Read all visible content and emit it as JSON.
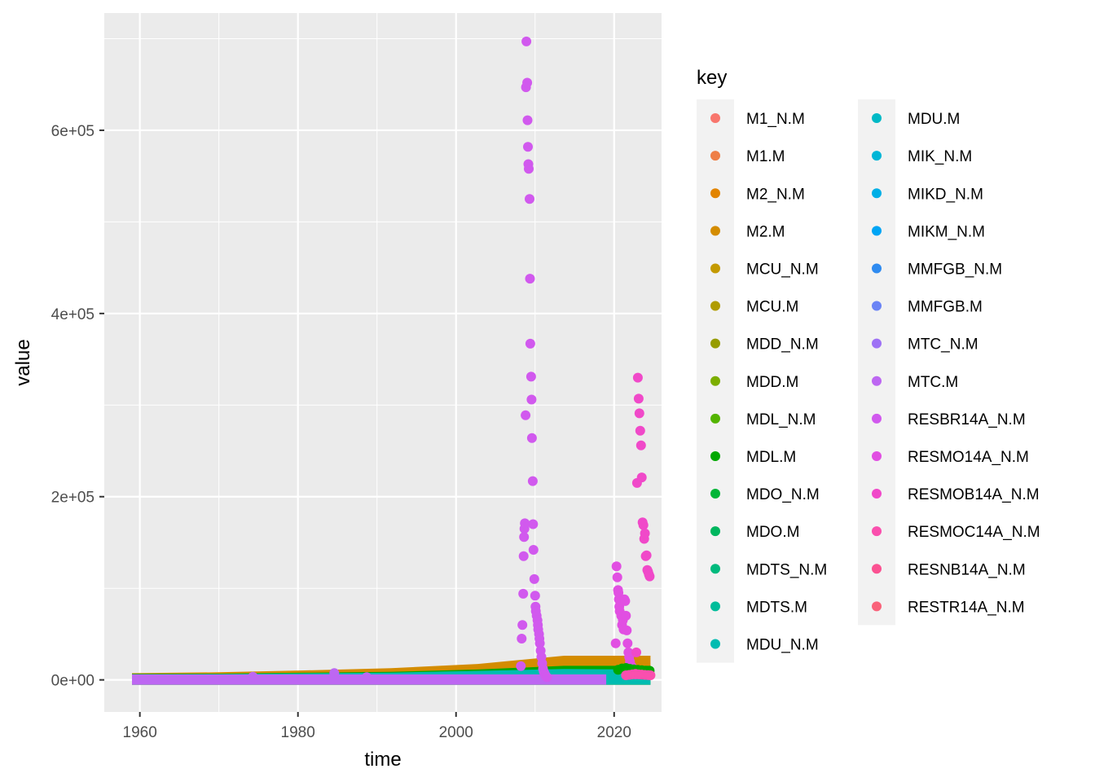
{
  "chart_data": {
    "type": "scatter",
    "xlabel": "time",
    "ylabel": "value",
    "xlim": [
      1955.5,
      2026
    ],
    "ylim": [
      -35000,
      728000
    ],
    "x_ticks": [
      1960,
      1980,
      2000,
      2020
    ],
    "x_tick_labels": [
      "1960",
      "1980",
      "2000",
      "2020"
    ],
    "y_ticks": [
      0,
      200000,
      400000,
      600000
    ],
    "y_tick_labels": [
      "0e+00",
      "2e+05",
      "4e+05",
      "6e+05"
    ],
    "grid": true,
    "legend_position": "right",
    "legend": {
      "title": "key",
      "keys": [
        {
          "label": "M1_N.M",
          "color": "#F8766D"
        },
        {
          "label": "M1.M",
          "color": "#EE7E46"
        },
        {
          "label": "M2_N.M",
          "color": "#E28400"
        },
        {
          "label": "M2.M",
          "color": "#D48C00"
        },
        {
          "label": "MCU_N.M",
          "color": "#C49A00"
        },
        {
          "label": "MCU.M",
          "color": "#B09C00"
        },
        {
          "label": "MDD_N.M",
          "color": "#969C00"
        },
        {
          "label": "MDD.M",
          "color": "#7CAE00"
        },
        {
          "label": "MDL_N.M",
          "color": "#53B400"
        },
        {
          "label": "MDL.M",
          "color": "#00A800"
        },
        {
          "label": "MDO_N.M",
          "color": "#00B537"
        },
        {
          "label": "MDO.M",
          "color": "#00B65E"
        },
        {
          "label": "MDTS_N.M",
          "color": "#00BA7D"
        },
        {
          "label": "MDTS.M",
          "color": "#00BD9A"
        },
        {
          "label": "MDU_N.M",
          "color": "#00BCB1"
        },
        {
          "label": "MDU.M",
          "color": "#00B9C6"
        },
        {
          "label": "MIK_N.M",
          "color": "#00B6D7"
        },
        {
          "label": "MIKD_N.M",
          "color": "#00AFE6"
        },
        {
          "label": "MIKM_N.M",
          "color": "#00A5F5"
        },
        {
          "label": "MMFGB_N.M",
          "color": "#2F8BF0"
        },
        {
          "label": "MMFGB.M",
          "color": "#6B84F5"
        },
        {
          "label": "MTC_N.M",
          "color": "#9E72F5"
        },
        {
          "label": "MTC.M",
          "color": "#BD67F2"
        },
        {
          "label": "RESBR14A_N.M",
          "color": "#D159EE"
        },
        {
          "label": "RESMO14A_N.M",
          "color": "#E14FE2"
        },
        {
          "label": "RESMOB14A_N.M",
          "color": "#F049C9"
        },
        {
          "label": "RESMOC14A_N.M",
          "color": "#FA4FAE"
        },
        {
          "label": "RESNB14A_N.M",
          "color": "#FB5292"
        },
        {
          "label": "RESTR14A_N.M",
          "color": "#F9627A"
        }
      ]
    },
    "series": [
      {
        "name": "RESBR14A_N.M",
        "color": "#D159EE",
        "x": [
          2008.2,
          2008.3,
          2008.4,
          2008.5,
          2008.55,
          2008.6,
          2008.65,
          2008.7,
          2008.8,
          2008.85,
          2008.9,
          2009.0,
          2009.05,
          2009.1,
          2009.15,
          2009.2,
          2009.3,
          2009.35,
          2009.4,
          2009.5,
          2009.55,
          2009.6,
          2009.7,
          2009.75,
          2009.8,
          2009.9,
          2010.0,
          2010.05,
          2010.1,
          2010.2,
          2010.3,
          2010.35,
          2010.4,
          2010.5,
          2010.55,
          2010.6,
          2010.7,
          2010.8,
          2010.9,
          2011.0,
          2011.1,
          2011.2,
          2011.3,
          2011.5
        ],
        "y": [
          15000,
          45000,
          60000,
          94000,
          135000,
          156000,
          165000,
          171000,
          289000,
          647000,
          697000,
          652000,
          611000,
          582000,
          563000,
          558000,
          525000,
          438000,
          367000,
          331000,
          306000,
          264000,
          217000,
          170000,
          142000,
          110000,
          92000,
          80000,
          75000,
          70000,
          65000,
          60000,
          55000,
          50000,
          45000,
          40000,
          32000,
          25000,
          18000,
          12000,
          9000,
          7000,
          5000,
          3000
        ]
      },
      {
        "name": "RESMO14A_N.M",
        "color": "#E14FE2",
        "x": [
          2020.2,
          2020.3,
          2020.4,
          2020.5,
          2020.55,
          2020.6,
          2020.65,
          2020.7,
          2020.8,
          2020.9,
          2021.0,
          2021.1,
          2021.2,
          2021.3,
          2021.4,
          2021.5,
          2021.6,
          2021.7,
          2021.8,
          2021.9,
          2022.0,
          2022.2,
          2022.4,
          2022.6
        ],
        "y": [
          40000,
          124000,
          112000,
          98000,
          95000,
          88000,
          80000,
          75000,
          85000,
          70000,
          60000,
          65000,
          55000,
          88000,
          86000,
          70000,
          54000,
          40000,
          30000,
          25000,
          20000,
          15000,
          10000,
          8000
        ]
      },
      {
        "name": "RESMOB14A_N.M",
        "color": "#F049C9",
        "x": [
          2022.7,
          2022.8,
          2022.9,
          2023.0,
          2023.1,
          2023.2,
          2023.3,
          2023.4,
          2023.5,
          2023.6,
          2023.7,
          2023.8,
          2023.9,
          2024.0,
          2024.1,
          2024.2,
          2024.3,
          2024.4,
          2024.5
        ],
        "y": [
          6000,
          30000,
          215000,
          330000,
          307000,
          291000,
          272000,
          256000,
          221000,
          172000,
          169000,
          154000,
          160000,
          135000,
          136000,
          120000,
          118000,
          115000,
          113000
        ]
      },
      {
        "name": "MTC.M",
        "color": "#BD67F2",
        "x": [
          1974.3,
          1984.6,
          1988.7
        ],
        "y": [
          3500,
          7500,
          3000
        ]
      },
      {
        "name": "MDL.M",
        "color": "#00A800",
        "x": [
          2020.5,
          2021.0,
          2021.5,
          2022.0,
          2022.5,
          2023.0,
          2023.5,
          2024.0,
          2024.5
        ],
        "y": [
          11000,
          12500,
          13000,
          12000,
          11500,
          11000,
          10500,
          10000,
          10000
        ]
      },
      {
        "name": "RESMOC14A_N.M",
        "color": "#FA4FAE",
        "x": [
          2021.5,
          2021.9,
          2022.3,
          2022.7,
          2023.1,
          2023.5,
          2023.9,
          2024.3,
          2024.6
        ],
        "y": [
          5000,
          5500,
          6000,
          6500,
          6000,
          5800,
          5500,
          5200,
          5000
        ]
      }
    ]
  }
}
